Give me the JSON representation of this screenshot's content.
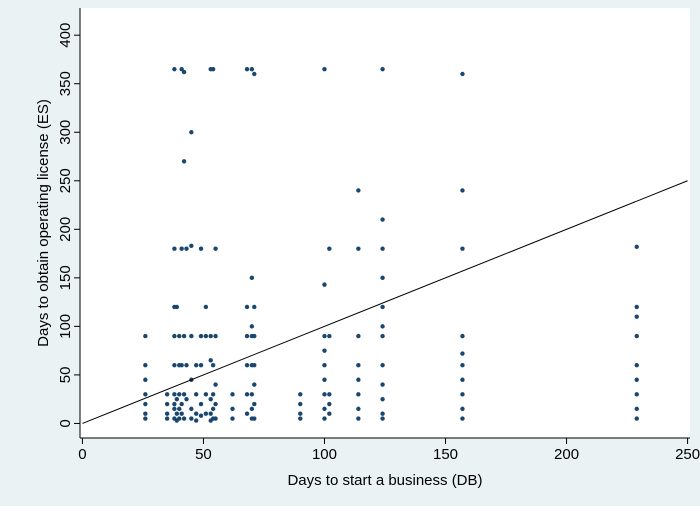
{
  "chart_data": {
    "type": "scatter",
    "x_label": "Days to start a business (DB)",
    "y_label": "Days to obtain operating license (ES)",
    "x": [
      26,
      26,
      26,
      26,
      26,
      26,
      26,
      35,
      35,
      35,
      35,
      38,
      38,
      38,
      38,
      38,
      38,
      38,
      38,
      38,
      39,
      39,
      39,
      39,
      40,
      40,
      40,
      40,
      40,
      41,
      41,
      41,
      41,
      41,
      42,
      42,
      42,
      42,
      42,
      43,
      43,
      43,
      45,
      45,
      45,
      45,
      45,
      45,
      47,
      47,
      47,
      47,
      49,
      49,
      49,
      49,
      49,
      51,
      51,
      51,
      51,
      53,
      53,
      53,
      53,
      53,
      53,
      54,
      54,
      54,
      54,
      54,
      55,
      55,
      55,
      55,
      55,
      62,
      62,
      62,
      68,
      68,
      68,
      68,
      68,
      68,
      70,
      70,
      70,
      70,
      70,
      70,
      70,
      70,
      71,
      71,
      71,
      71,
      71,
      71,
      71,
      90,
      90,
      90,
      90,
      100,
      100,
      100,
      100,
      100,
      100,
      100,
      100,
      100,
      102,
      102,
      102,
      102,
      102,
      114,
      114,
      114,
      114,
      114,
      114,
      114,
      114,
      124,
      124,
      124,
      124,
      124,
      124,
      124,
      124,
      124,
      124,
      124,
      124,
      157,
      157,
      157,
      157,
      157,
      157,
      157,
      157,
      157,
      157,
      229,
      229,
      229,
      229,
      229,
      229,
      229,
      229,
      229
    ],
    "values": [
      90,
      60,
      45,
      30,
      20,
      10,
      5,
      30,
      20,
      10,
      5,
      120,
      90,
      60,
      30,
      20,
      15,
      5,
      365,
      180,
      120,
      25,
      10,
      3,
      90,
      60,
      30,
      15,
      5,
      365,
      180,
      60,
      20,
      10,
      362,
      270,
      90,
      30,
      5,
      180,
      60,
      25,
      300,
      183,
      90,
      45,
      15,
      5,
      60,
      30,
      10,
      3,
      180,
      90,
      60,
      20,
      8,
      120,
      90,
      30,
      10,
      365,
      90,
      65,
      25,
      10,
      3,
      365,
      60,
      30,
      15,
      5,
      180,
      90,
      40,
      20,
      5,
      30,
      15,
      5,
      365,
      120,
      90,
      60,
      30,
      10,
      365,
      150,
      100,
      90,
      60,
      30,
      15,
      5,
      360,
      120,
      90,
      60,
      40,
      20,
      5,
      30,
      20,
      10,
      5,
      365,
      143,
      90,
      75,
      60,
      45,
      30,
      15,
      5,
      180,
      90,
      30,
      20,
      10,
      240,
      180,
      90,
      60,
      45,
      30,
      15,
      5,
      365,
      210,
      180,
      150,
      120,
      100,
      90,
      60,
      40,
      25,
      10,
      5,
      360,
      240,
      180,
      90,
      72,
      60,
      45,
      30,
      15,
      5,
      182,
      120,
      110,
      90,
      60,
      45,
      30,
      15,
      5
    ],
    "color": "#1a476f",
    "reference_line": {
      "x": [
        0,
        250
      ],
      "values": [
        0,
        250
      ],
      "color": "#000000"
    },
    "xlim": [
      -1,
      251
    ],
    "ylim": [
      -15,
      428
    ],
    "xticks": [
      0,
      50,
      100,
      150,
      200,
      250
    ],
    "yticks": [
      0,
      50,
      100,
      150,
      200,
      250,
      300,
      350,
      400
    ],
    "grid": false
  }
}
